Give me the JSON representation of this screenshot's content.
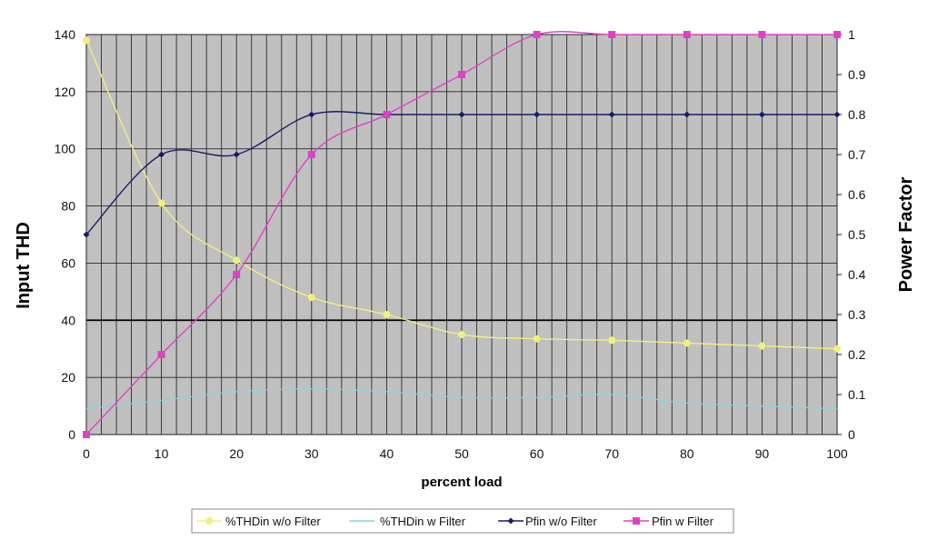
{
  "chart_data": {
    "type": "line",
    "xlabel": "percent load",
    "ylabel": "Input THD",
    "y2label": "Power Factor",
    "xlim": [
      0,
      100
    ],
    "ylim": [
      0,
      140
    ],
    "y2lim": [
      0,
      1
    ],
    "x_ticks": [
      "0",
      "10",
      "20",
      "30",
      "40",
      "50",
      "60",
      "70",
      "80",
      "90",
      "100"
    ],
    "y_ticks": [
      "0",
      "20",
      "40",
      "60",
      "80",
      "100",
      "120",
      "140"
    ],
    "y2_ticks": [
      "0",
      "0.1",
      "0.2",
      "0.3",
      "0.4",
      "0.5",
      "0.6",
      "0.7",
      "0.8",
      "0.9",
      "1"
    ],
    "grid": true,
    "legend_position": "bottom",
    "colors": {
      "plot_bg": "#c0c0c0",
      "grid": "#2a2a2a",
      "thd_wo_filter": "#f2ef80",
      "thd_w_filter": "#86d4e0",
      "pf_wo_filter": "#1a1a66",
      "pf_w_filter": "#e040c8"
    },
    "series": [
      {
        "name": "%THDin w/o Filter",
        "axis": "left",
        "marker": "circle",
        "x": [
          0,
          10,
          20,
          30,
          40,
          50,
          60,
          70,
          80,
          90,
          100
        ],
        "y": [
          138,
          81,
          61,
          48,
          42,
          35,
          33.5,
          33,
          32,
          31,
          30
        ]
      },
      {
        "name": "%THDin w Filter",
        "axis": "left",
        "marker": "none",
        "x": [
          0,
          10,
          20,
          30,
          40,
          50,
          60,
          70,
          80,
          90,
          100
        ],
        "y": [
          9,
          12,
          15,
          16,
          15,
          13,
          13,
          14,
          11,
          10,
          9
        ]
      },
      {
        "name": "Pfin w/o Filter",
        "axis": "right",
        "marker": "diamond",
        "x": [
          0,
          10,
          20,
          30,
          40,
          50,
          60,
          70,
          80,
          90,
          100
        ],
        "y": [
          0.5,
          0.7,
          0.7,
          0.8,
          0.8,
          0.8,
          0.8,
          0.8,
          0.8,
          0.8,
          0.8
        ]
      },
      {
        "name": "Pfin w Filter",
        "axis": "right",
        "marker": "square",
        "x": [
          0,
          10,
          20,
          30,
          40,
          50,
          60,
          70,
          80,
          90,
          100
        ],
        "y": [
          0,
          0.2,
          0.4,
          0.7,
          0.8,
          0.9,
          1.0,
          1.0,
          1.0,
          1.0,
          1.0
        ]
      }
    ]
  }
}
